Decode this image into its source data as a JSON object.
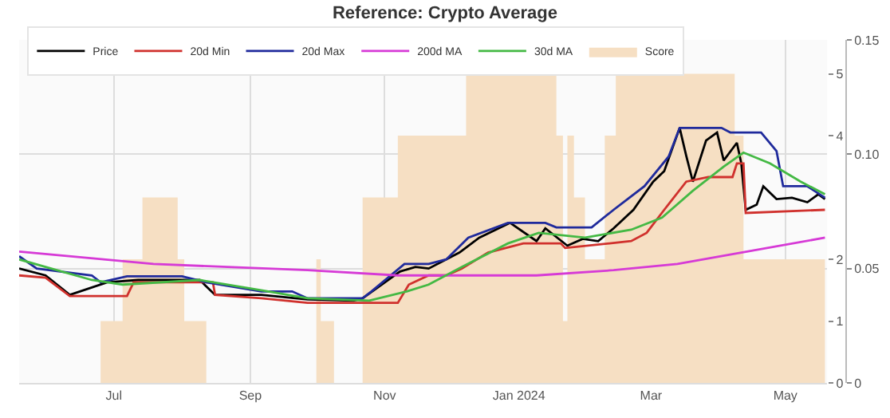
{
  "chart_data": {
    "type": "line",
    "title": "Reference: Crypto Average",
    "xlim": [
      "2023-05-19",
      "2024-05-20"
    ],
    "xticks": [
      {
        "value": "2023-07-01",
        "label": "Jul"
      },
      {
        "value": "2023-09-01",
        "label": "Sep"
      },
      {
        "value": "2023-11-01",
        "label": "Nov"
      },
      {
        "value": "2024-01-01",
        "label": "Jan 2024"
      },
      {
        "value": "2024-03-01",
        "label": "Mar"
      },
      {
        "value": "2024-05-01",
        "label": "May"
      }
    ],
    "ylim": [
      0,
      5.55
    ],
    "yticks": [
      0,
      1,
      2,
      4,
      5
    ],
    "y2lim": [
      0,
      0.15
    ],
    "y2ticks": [
      0,
      0.05,
      {
        "value": 0.1,
        "label": "0.10"
      },
      0.15
    ],
    "grid": true,
    "legend": "top left",
    "series": [
      {
        "name": "Price",
        "color": "#000000",
        "axis": "y2",
        "x": [
          "2023-05-19",
          "2023-05-31",
          "2023-06-11",
          "2023-06-28",
          "2023-07-12",
          "2023-08-09",
          "2023-08-16",
          "2023-09-06",
          "2023-09-27",
          "2023-10-18",
          "2023-10-22",
          "2023-11-08",
          "2023-11-15",
          "2023-11-21",
          "2023-12-05",
          "2023-12-14",
          "2023-12-28",
          "2024-01-09",
          "2024-01-13",
          "2024-01-23",
          "2024-01-30",
          "2024-02-06",
          "2024-02-13",
          "2024-02-22",
          "2024-03-02",
          "2024-03-07",
          "2024-03-14",
          "2024-03-17",
          "2024-03-20",
          "2024-03-26",
          "2024-03-31",
          "2024-04-03",
          "2024-04-09",
          "2024-04-11",
          "2024-04-13",
          "2024-04-18",
          "2024-04-21",
          "2024-04-27",
          "2024-05-04",
          "2024-05-11",
          "2024-05-16",
          "2024-05-19"
        ],
        "values": [
          0.05,
          0.047,
          0.0385,
          0.044,
          0.045,
          0.045,
          0.0385,
          0.0385,
          0.0365,
          0.036,
          0.037,
          0.0487,
          0.0507,
          0.05,
          0.057,
          0.0635,
          0.07,
          0.062,
          0.0676,
          0.06,
          0.063,
          0.062,
          0.0676,
          0.0757,
          0.088,
          0.0926,
          0.1115,
          0.0993,
          0.088,
          0.106,
          0.1095,
          0.0973,
          0.105,
          0.096,
          0.0757,
          0.078,
          0.086,
          0.0804,
          0.081,
          0.079,
          0.0825,
          0.0804
        ]
      },
      {
        "name": "20d Min",
        "color": "#d0312d",
        "axis": "y2",
        "x": [
          "2023-05-19",
          "2023-05-31",
          "2023-06-11",
          "2023-07-07",
          "2023-07-10",
          "2023-08-15",
          "2023-08-16",
          "2023-09-06",
          "2023-09-27",
          "2023-11-07",
          "2023-11-12",
          "2023-11-21",
          "2023-11-29",
          "2023-12-06",
          "2023-12-18",
          "2024-01-03",
          "2024-01-20",
          "2024-01-22",
          "2024-02-21",
          "2024-02-28",
          "2024-03-07",
          "2024-03-17",
          "2024-03-27",
          "2024-04-07",
          "2024-04-09",
          "2024-04-12",
          "2024-04-13",
          "2024-05-19"
        ],
        "values": [
          0.047,
          0.046,
          0.038,
          0.038,
          0.044,
          0.044,
          0.0385,
          0.037,
          0.035,
          0.035,
          0.043,
          0.047,
          0.047,
          0.05,
          0.057,
          0.061,
          0.061,
          0.059,
          0.062,
          0.0656,
          0.0757,
          0.088,
          0.09,
          0.09,
          0.096,
          0.096,
          0.0743,
          0.0757
        ]
      },
      {
        "name": "20d Max",
        "color": "#1f2a9c",
        "axis": "y2",
        "x": [
          "2023-05-19",
          "2023-05-27",
          "2023-06-21",
          "2023-06-25",
          "2023-07-07",
          "2023-08-01",
          "2023-08-12",
          "2023-09-06",
          "2023-09-20",
          "2023-09-27",
          "2023-10-22",
          "2023-10-26",
          "2023-11-10",
          "2023-11-21",
          "2023-11-29",
          "2023-12-09",
          "2023-12-27",
          "2024-01-13",
          "2024-01-18",
          "2024-02-03",
          "2024-02-13",
          "2024-02-27",
          "2024-03-09",
          "2024-03-14",
          "2024-04-02",
          "2024-04-06",
          "2024-04-20",
          "2024-04-27",
          "2024-04-30",
          "2024-05-11",
          "2024-05-19"
        ],
        "values": [
          0.0554,
          0.05,
          0.047,
          0.044,
          0.0466,
          0.0466,
          0.044,
          0.04,
          0.04,
          0.037,
          0.037,
          0.04,
          0.052,
          0.052,
          0.054,
          0.0635,
          0.07,
          0.07,
          0.068,
          0.068,
          0.0757,
          0.086,
          0.099,
          0.1115,
          0.1115,
          0.1095,
          0.1095,
          0.1014,
          0.086,
          0.086,
          0.081
        ]
      },
      {
        "name": "200d MA",
        "color": "#d63ad6",
        "axis": "y2",
        "x": [
          "2023-05-19",
          "2023-07-19",
          "2023-09-27",
          "2023-11-07",
          "2024-01-09",
          "2024-02-13",
          "2024-03-13",
          "2024-04-10",
          "2024-05-19"
        ],
        "values": [
          0.0574,
          0.052,
          0.0493,
          0.047,
          0.047,
          0.0493,
          0.052,
          0.0568,
          0.0635
        ]
      },
      {
        "name": "30d MA",
        "color": "#44b944",
        "axis": "y2",
        "x": [
          "2023-05-19",
          "2023-05-31",
          "2023-06-21",
          "2023-07-05",
          "2023-08-09",
          "2023-09-06",
          "2023-09-27",
          "2023-10-25",
          "2023-11-11",
          "2023-11-21",
          "2023-12-06",
          "2023-12-27",
          "2024-01-10",
          "2024-01-31",
          "2024-02-21",
          "2024-03-06",
          "2024-03-20",
          "2024-04-03",
          "2024-04-12",
          "2024-04-24",
          "2024-05-08",
          "2024-05-19"
        ],
        "values": [
          0.054,
          0.0507,
          0.045,
          0.043,
          0.045,
          0.0405,
          0.037,
          0.036,
          0.04,
          0.043,
          0.0507,
          0.061,
          0.0656,
          0.0635,
          0.067,
          0.0723,
          0.084,
          0.0946,
          0.1007,
          0.096,
          0.088,
          0.0825
        ]
      },
      {
        "name": "Score",
        "type": "area",
        "color": "#f6dfc3",
        "axis": "y",
        "x": [
          "2023-05-19",
          "2023-06-25",
          "2023-07-05",
          "2023-07-14",
          "2023-07-30",
          "2023-08-02",
          "2023-08-12",
          "2023-10-01",
          "2023-10-03",
          "2023-10-09",
          "2023-10-22",
          "2023-11-07",
          "2023-12-08",
          "2024-01-18",
          "2024-01-21",
          "2024-01-23",
          "2024-01-26",
          "2024-01-31",
          "2024-02-09",
          "2024-02-14",
          "2024-04-08",
          "2024-04-12",
          "2024-05-19"
        ],
        "values": [
          0,
          1,
          2,
          3,
          2,
          1,
          0,
          2,
          1,
          0,
          3,
          4,
          5,
          4,
          1,
          4,
          3,
          2,
          4,
          5,
          4,
          2,
          2
        ]
      }
    ]
  }
}
